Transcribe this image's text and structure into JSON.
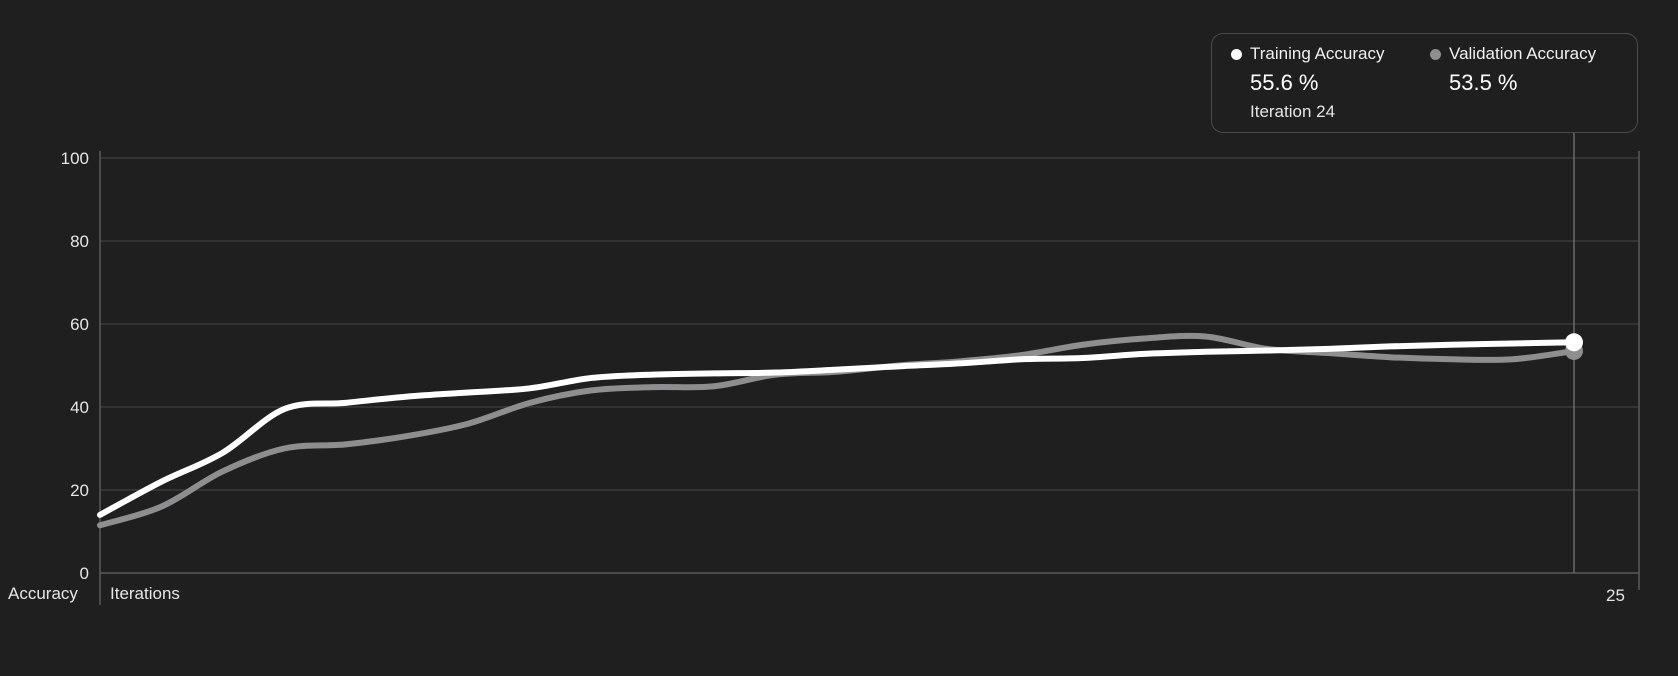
{
  "chart_data": {
    "type": "line",
    "ylabel": "Accuracy",
    "xlabel": "Iterations",
    "xlim": [
      0,
      25
    ],
    "ylim": [
      0,
      100
    ],
    "x_tick_labels": [
      "25"
    ],
    "y_ticks": [
      0,
      20,
      40,
      60,
      80,
      100
    ],
    "grid": true,
    "x": [
      0,
      1,
      2,
      3,
      4,
      5,
      6,
      7,
      8,
      9,
      10,
      11,
      12,
      13,
      14,
      15,
      16,
      17,
      18,
      19,
      20,
      21,
      22,
      23,
      24
    ],
    "series": [
      {
        "name": "Training Accuracy",
        "color": "#ffffff",
        "values": [
          14,
          22,
          29,
          39.5,
          41,
          42.5,
          43.5,
          44.5,
          47,
          47.8,
          48.1,
          48.3,
          49,
          49.8,
          50.5,
          51.5,
          51.8,
          52.8,
          53.3,
          53.6,
          54,
          54.6,
          55,
          55.3,
          55.6
        ]
      },
      {
        "name": "Validation Accuracy",
        "color": "#8e8e90",
        "values": [
          11.5,
          16,
          24.5,
          30,
          31,
          33,
          36,
          41,
          44,
          44.8,
          45,
          47.8,
          48.5,
          50,
          51,
          52.5,
          55,
          56.5,
          57,
          54,
          53,
          52,
          51.5,
          51.5,
          53.5
        ]
      }
    ],
    "tooltip": {
      "training": {
        "name": "Training Accuracy",
        "value": "55.6 %"
      },
      "validation": {
        "name": "Validation Accuracy",
        "value": "53.5 %"
      },
      "iteration": "Iteration 24"
    },
    "colors": {
      "background": "#1f1f1f",
      "grid": "#3a3a3a",
      "axis": "#5a5a5a",
      "training": "#ffffff",
      "validation": "#8e8e90"
    }
  }
}
